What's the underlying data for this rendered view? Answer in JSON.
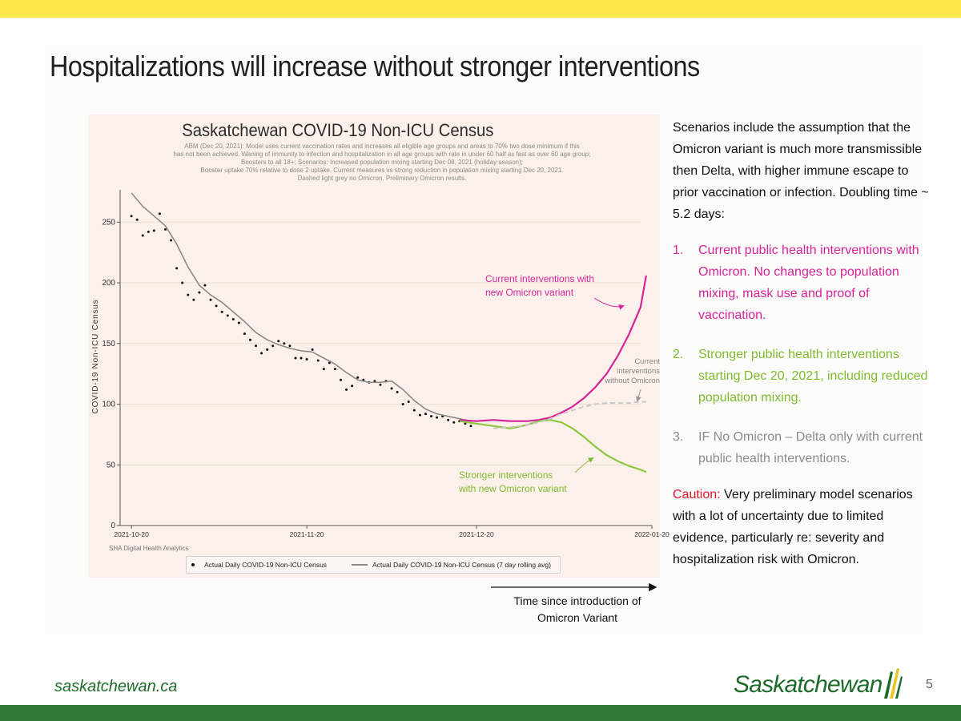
{
  "slide": {
    "title": "Hospitalizations will increase without stronger interventions",
    "page_number": "5",
    "footer_url": "saskatchewan.ca",
    "footer_logo": "Saskatchewan",
    "colors": {
      "top_bar": "#fbe84a",
      "bottom_bar": "#2f7a35",
      "magenta": "#d6249b",
      "green": "#7fba2f",
      "grey": "#8c8c8c",
      "caution": "#e0142b"
    }
  },
  "chart_data": {
    "type": "line",
    "title": "Saskatchewan COVID-19 Non-ICU Census",
    "subtitle_lines": [
      "ABM (Dec 20, 2021): Model uses current vaccination rates and increases all eligible age groups and areas to 70% two dose minimum if this",
      "has not been achieved. Waning of immunity to infection and hospitalization in all age groups with rate in under 60 half as fast as over 60 age group;",
      "Boosters to all 18+; Scenarios: Increased population mixing starting Dec 08, 2021 (holiday season);",
      "Booster uptake 70% relative to dose 2 uptake. Current measures vs strong reduction in population mixing starting Dec 20, 2021.",
      "Dashed light grey no Omicron. Preliminary Omicron results."
    ],
    "ylabel": "COVID-19 Non-ICU Census",
    "xlabel": "",
    "ylim": [
      0,
      270
    ],
    "xlim_days": [
      -2,
      92
    ],
    "yticks": [
      0,
      50,
      100,
      150,
      200,
      250
    ],
    "xticks": [
      {
        "day": 0,
        "label": "2021-10-20"
      },
      {
        "day": 31,
        "label": "2021-11-20"
      },
      {
        "day": 61,
        "label": "2021-12-20"
      },
      {
        "day": 92,
        "label": "2022-01-20"
      }
    ],
    "grid": true,
    "source": "SHA Digital Health Analytics",
    "legend": [
      "Actual Daily COVID-19 Non-ICU Census",
      "Actual Daily COVID-19 Non-ICU Census (7 day rolling avg)"
    ],
    "series": [
      {
        "name": "Actual Daily COVID-19 Non-ICU Census",
        "style": "dots",
        "color": "#111111",
        "x": [
          0,
          1,
          2,
          3,
          4,
          5,
          6,
          7,
          8,
          9,
          10,
          11,
          12,
          13,
          14,
          15,
          16,
          17,
          18,
          19,
          20,
          21,
          22,
          23,
          24,
          25,
          26,
          27,
          28,
          29,
          30,
          31,
          32,
          33,
          34,
          35,
          36,
          37,
          38,
          39,
          40,
          41,
          42,
          43,
          44,
          45,
          46,
          47,
          48,
          49,
          50,
          51,
          52,
          53,
          54,
          55,
          56,
          57,
          58,
          59,
          60
        ],
        "y": [
          255,
          252,
          239,
          242,
          243,
          257,
          244,
          235,
          212,
          200,
          190,
          186,
          192,
          198,
          186,
          181,
          176,
          173,
          170,
          167,
          158,
          153,
          148,
          142,
          145,
          148,
          152,
          150,
          148,
          138,
          138,
          137,
          145,
          136,
          129,
          134,
          129,
          120,
          112,
          115,
          122,
          120,
          118,
          119,
          116,
          119,
          113,
          110,
          100,
          102,
          95,
          91,
          92,
          90,
          89,
          90,
          87,
          85,
          86,
          84,
          82
        ]
      },
      {
        "name": "Actual Daily COVID-19 Non-ICU Census (7 day rolling avg)",
        "style": "solid",
        "color": "#8a8a8a",
        "x": [
          0,
          2,
          4,
          6,
          8,
          10,
          12,
          14,
          16,
          18,
          20,
          22,
          24,
          26,
          28,
          30,
          32,
          34,
          36,
          38,
          40,
          42,
          44,
          46,
          48,
          50,
          52,
          54,
          56,
          58,
          60
        ],
        "y": [
          274,
          263,
          255,
          247,
          232,
          213,
          198,
          190,
          184,
          176,
          168,
          159,
          153,
          149,
          146,
          144,
          143,
          138,
          133,
          126,
          120,
          118,
          118,
          119,
          112,
          103,
          96,
          92,
          90,
          88,
          86
        ]
      },
      {
        "name": "Current interventions with new Omicron variant",
        "style": "solid",
        "color": "#d6249b",
        "x": [
          58,
          61,
          64,
          67,
          70,
          72,
          74,
          76,
          78,
          80,
          82,
          84,
          86,
          88,
          90,
          91
        ],
        "y": [
          87,
          86,
          87,
          86,
          86,
          87,
          89,
          93,
          98,
          105,
          114,
          125,
          140,
          158,
          180,
          206
        ]
      },
      {
        "name": "Stronger interventions with new Omicron variant",
        "style": "solid",
        "color": "#8dc63f",
        "x": [
          58,
          61,
          64,
          67,
          70,
          72,
          74,
          76,
          78,
          80,
          82,
          84,
          86,
          88,
          90,
          91
        ],
        "y": [
          86,
          84,
          82,
          80,
          83,
          86,
          87,
          85,
          80,
          73,
          65,
          58,
          53,
          49,
          46,
          44
        ]
      },
      {
        "name": "Current interventions without Omicron",
        "style": "dashed",
        "color": "#c9c9c9",
        "x": [
          64,
          67,
          70,
          72,
          74,
          76,
          78,
          80,
          82,
          84,
          86,
          88,
          90,
          91
        ],
        "y": [
          80,
          81,
          83,
          85,
          88,
          92,
          95,
          98,
          100,
          101,
          101,
          101,
          102,
          102
        ]
      }
    ],
    "annotations": {
      "magenta": [
        "Current interventions with",
        "new Omicron variant"
      ],
      "grey": [
        "Current",
        "interventions",
        "without Omicron"
      ],
      "green": [
        "Stronger interventions",
        "with new Omicron variant"
      ]
    }
  },
  "side_panel": {
    "intro": "Scenarios include the assumption that the Omicron variant is much more transmissible then Delta, with higher immune escape to prior vaccination or infection.  Doubling time ~ 5.2 days:",
    "items": [
      {
        "num": "1.",
        "text": "Current public health interventions with Omicron. No changes to population mixing, mask use and proof of vaccination."
      },
      {
        "num": "2.",
        "text": "Stronger public health interventions starting Dec 20, 2021, including reduced population mixing."
      },
      {
        "num": "3.",
        "text": "IF No Omicron – Delta only with current public health interventions."
      }
    ],
    "caution_label": "Caution:",
    "caution_text": " Very preliminary model scenarios with a lot of uncertainty due to limited evidence, particularly re: severity and hospitalization risk with Omicron."
  },
  "time_axis_label": [
    "Time since introduction of",
    "Omicron Variant"
  ]
}
